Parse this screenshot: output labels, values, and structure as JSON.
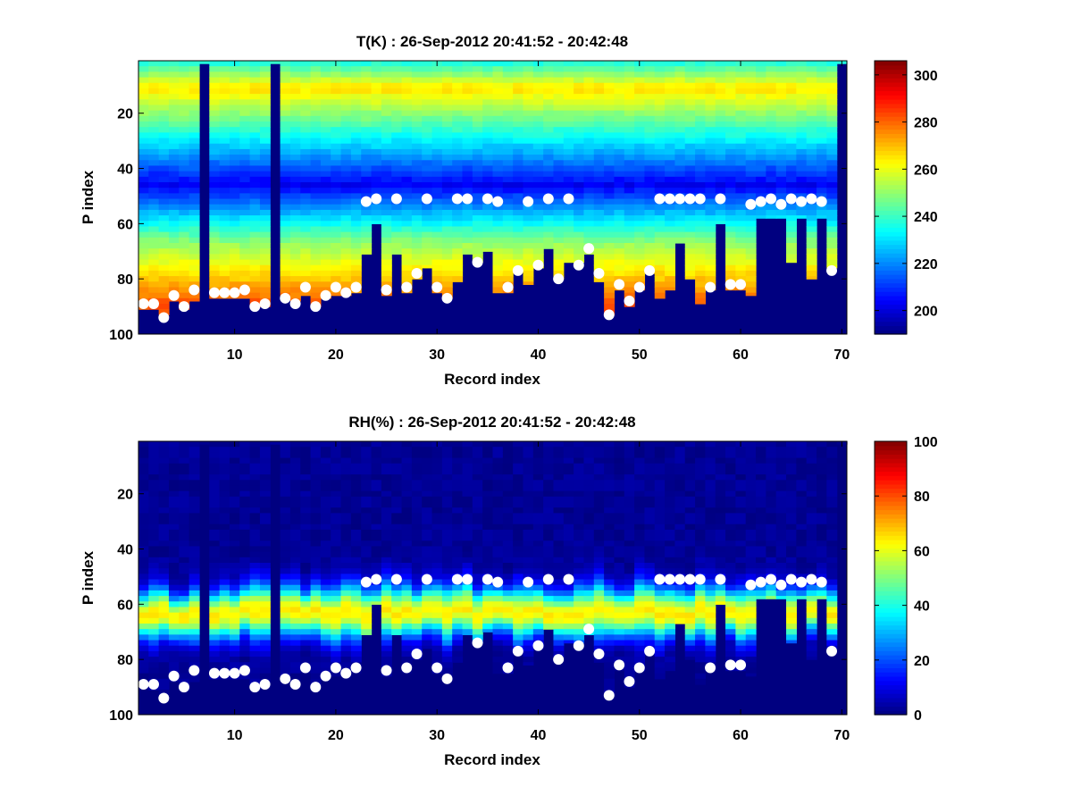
{
  "chart_data": [
    {
      "type": "heatmap",
      "title": "T(K) : 26-Sep-2012 20:41:52 - 20:42:48",
      "xlabel": "Record index",
      "ylabel": "P index",
      "xlim": [
        0.5,
        70.5
      ],
      "ylim": [
        1,
        100
      ],
      "y_reversed": true,
      "xticks": [
        10,
        20,
        30,
        40,
        50,
        60,
        70
      ],
      "yticks": [
        20,
        40,
        60,
        80,
        100
      ],
      "colorbar": {
        "min": 190,
        "max": 306,
        "ticks": [
          200,
          220,
          240,
          260,
          280,
          300
        ]
      },
      "profile_peak": 266,
      "profile_tropo": 203,
      "profile_surface": 282,
      "marker_color": "#ffffff"
    },
    {
      "type": "heatmap",
      "title": "RH(%) : 26-Sep-2012 20:41:52 - 20:42:48",
      "xlabel": "Record index",
      "ylabel": "P index",
      "xlim": [
        0.5,
        70.5
      ],
      "ylim": [
        1,
        100
      ],
      "y_reversed": true,
      "xticks": [
        10,
        20,
        30,
        40,
        50,
        60,
        70
      ],
      "yticks": [
        20,
        40,
        60,
        80,
        100
      ],
      "colorbar": {
        "min": 0,
        "max": 100,
        "ticks": [
          0,
          20,
          40,
          60,
          80,
          100
        ]
      },
      "rh_center": 62,
      "rh_peak": 62,
      "marker_color": "#ffffff"
    }
  ],
  "records": [
    1,
    2,
    3,
    4,
    5,
    6,
    7,
    8,
    9,
    10,
    11,
    12,
    13,
    14,
    15,
    16,
    17,
    18,
    19,
    20,
    21,
    22,
    23,
    24,
    25,
    26,
    27,
    28,
    29,
    30,
    31,
    32,
    33,
    34,
    35,
    36,
    37,
    38,
    39,
    40,
    41,
    42,
    43,
    44,
    45,
    46,
    47,
    48,
    49,
    50,
    51,
    52,
    53,
    54,
    55,
    56,
    57,
    58,
    59,
    60,
    61,
    62,
    63,
    64,
    65,
    66,
    67,
    68,
    69,
    70
  ],
  "surface_p_index": [
    91,
    91,
    93,
    88,
    91,
    88,
    2,
    87,
    87,
    87,
    87,
    90,
    90,
    2,
    87,
    88,
    86,
    90,
    87,
    86,
    86,
    85,
    71,
    60,
    86,
    71,
    85,
    80,
    76,
    85,
    87,
    81,
    71,
    74,
    70,
    85,
    85,
    77,
    82,
    76,
    69,
    80,
    74,
    74,
    71,
    81,
    93,
    84,
    90,
    84,
    78,
    87,
    84,
    67,
    80,
    89,
    84,
    60,
    84,
    84,
    86,
    58,
    58,
    58,
    74,
    58,
    80,
    58,
    76,
    2
  ],
  "marker_p_index": [
    89,
    89,
    94,
    86,
    90,
    84,
    null,
    85,
    85,
    85,
    84,
    90,
    89,
    null,
    87,
    89,
    83,
    90,
    86,
    83,
    85,
    83,
    52,
    51,
    84,
    51,
    83,
    78,
    51,
    83,
    87,
    51,
    51,
    74,
    51,
    52,
    83,
    77,
    52,
    75,
    51,
    80,
    51,
    75,
    69,
    78,
    93,
    82,
    88,
    83,
    77,
    51,
    51,
    51,
    51,
    51,
    83,
    51,
    82,
    82,
    53,
    52,
    51,
    53,
    51,
    52,
    51,
    52,
    77,
    null
  ]
}
